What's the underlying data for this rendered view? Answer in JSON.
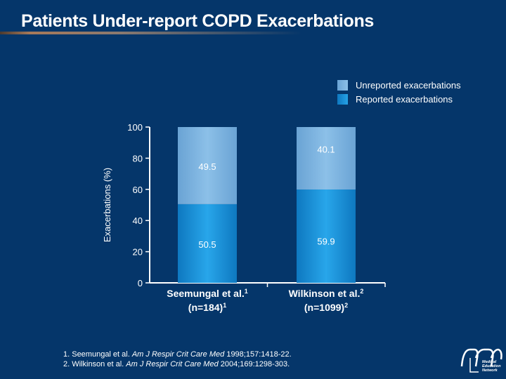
{
  "title": "Patients Under-report COPD Exacerbations",
  "legend": [
    {
      "label": "Unreported exacerbations",
      "color": "#7eb3df"
    },
    {
      "label": "Reported exacerbations",
      "color": "#168fd8"
    }
  ],
  "chart_data": {
    "type": "bar",
    "stacked": true,
    "ylabel": "Exacerbations (%)",
    "ylim": [
      0,
      100
    ],
    "yticks": [
      0,
      20,
      40,
      60,
      80,
      100
    ],
    "categories": [
      {
        "name": "Seemungal et al.",
        "sup": "1",
        "n": "(n=184)",
        "nsup": "1"
      },
      {
        "name": "Wilkinson et al.",
        "sup": "2",
        "n": "(n=1099)",
        "nsup": "2"
      }
    ],
    "series": [
      {
        "name": "Reported exacerbations",
        "values": [
          50.5,
          59.9
        ],
        "labels": [
          "50.5",
          "59.9"
        ]
      },
      {
        "name": "Unreported exacerbations",
        "values": [
          49.5,
          40.1
        ],
        "labels": [
          "49.5",
          "40.1"
        ]
      }
    ],
    "grid": false,
    "legend_position": "top-right"
  },
  "footnotes": [
    {
      "pre": "1. Seemungal et al. ",
      "journal": "Am J Respir Crit Care Med",
      "post": " 1998;157:1418-22."
    },
    {
      "pre": "2. Wilkinson et al. ",
      "journal": "Am J Respir Crit Care Med",
      "post": " 2004;169:1298-303."
    }
  ],
  "logo": {
    "text": "Medical Education Network"
  }
}
